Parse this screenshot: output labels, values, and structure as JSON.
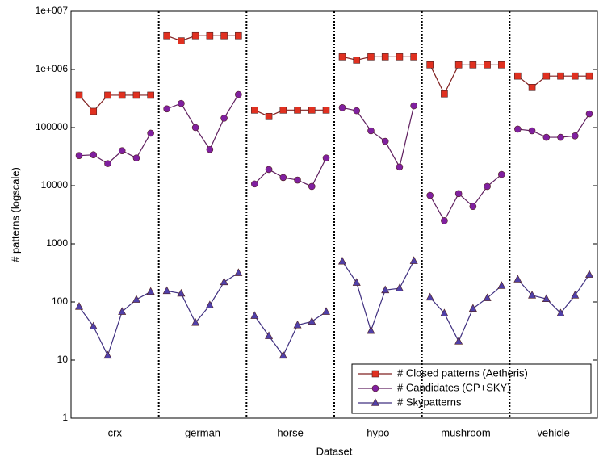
{
  "chart_data": {
    "type": "line",
    "x_label": "Dataset",
    "y_label": "# patterns (logscale)",
    "categories": [
      "crx",
      "german",
      "horse",
      "hypo",
      "mushroom",
      "vehicle"
    ],
    "log_scale": true,
    "ylim": [
      1,
      10000000
    ],
    "yticks": [
      1,
      10,
      100,
      1000,
      10000,
      100000,
      {
        "value": 1000000,
        "label": "1e+006"
      },
      {
        "value": 10000000,
        "label": "1e+007"
      }
    ],
    "legend": "lower right",
    "series": [
      {
        "name": "# Closed patterns (Aetheris)",
        "color": "#e03020",
        "line_color": "#802020",
        "marker": "square",
        "values": [
          [
            360000,
            190000,
            360000,
            360000,
            360000,
            360000
          ],
          [
            3800000,
            3100000,
            3800000,
            3800000,
            3800000,
            3800000
          ],
          [
            200000,
            155000,
            200000,
            200000,
            200000,
            200000
          ],
          [
            1650000,
            1450000,
            1650000,
            1650000,
            1650000,
            1650000
          ],
          [
            1200000,
            380000,
            1200000,
            1200000,
            1200000,
            1200000
          ],
          [
            770000,
            490000,
            770000,
            770000,
            770000,
            770000
          ]
        ]
      },
      {
        "name": "# Candidates (CP+SKY)",
        "color": "#8020a0",
        "line_color": "#602060",
        "marker": "circle",
        "values": [
          [
            33000,
            34000,
            24000,
            40000,
            30000,
            80000
          ],
          [
            210000,
            260000,
            100000,
            42000,
            145000,
            370000
          ],
          [
            10700,
            19000,
            13800,
            12500,
            9700,
            30000
          ],
          [
            220000,
            195000,
            88000,
            58000,
            21000,
            237000
          ],
          [
            6800,
            2500,
            7300,
            4400,
            9700,
            15600
          ],
          [
            94000,
            88000,
            68000,
            68000,
            72000,
            172000
          ]
        ]
      },
      {
        "name": "# Skypatterns",
        "color": "#5040a8",
        "line_color": "#403080",
        "marker": "triangle",
        "values": [
          [
            83,
            38,
            12,
            68,
            110,
            150
          ],
          [
            155,
            140,
            44,
            88,
            220,
            316
          ],
          [
            58,
            26,
            12,
            40,
            46,
            68
          ],
          [
            500,
            215,
            32,
            160,
            172,
            510
          ],
          [
            120,
            64,
            21,
            77,
            117,
            190
          ],
          [
            245,
            130,
            113,
            64,
            130,
            296
          ]
        ]
      }
    ]
  }
}
